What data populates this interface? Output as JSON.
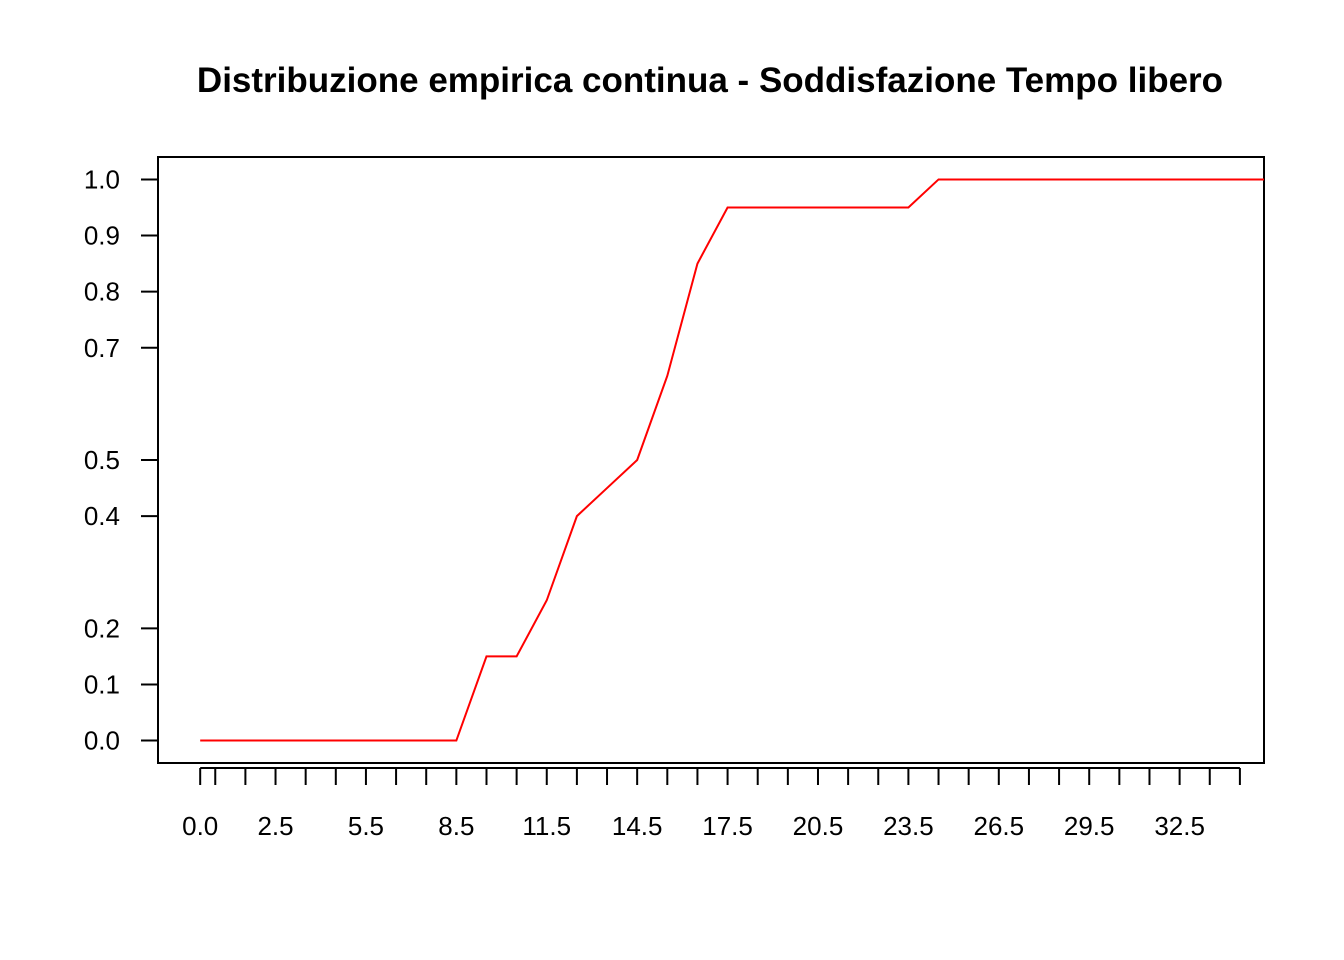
{
  "chart_data": {
    "type": "line",
    "title": "Distribuzione empirica continua - Soddisfazione Tempo libero",
    "xlabel": "",
    "ylabel": "",
    "xlim": [
      -1.4,
      35.3
    ],
    "ylim": [
      -0.04,
      1.04
    ],
    "grid": false,
    "legend": "none",
    "x_ticks": [
      0,
      0.5,
      1.5,
      2.5,
      3.5,
      4.5,
      5.5,
      6.5,
      7.5,
      8.5,
      9.5,
      10.5,
      11.5,
      12.5,
      13.5,
      14.5,
      15.5,
      16.5,
      17.5,
      18.5,
      19.5,
      20.5,
      21.5,
      22.5,
      23.5,
      24.5,
      25.5,
      26.5,
      27.5,
      28.5,
      29.5,
      30.5,
      31.5,
      32.5,
      33.5,
      34.5
    ],
    "x_tick_labels": [
      "0.0",
      "2.5",
      "5.5",
      "8.5",
      "11.5",
      "14.5",
      "17.5",
      "20.5",
      "23.5",
      "26.5",
      "29.5",
      "32.5"
    ],
    "x_tick_label_values": [
      0,
      2.5,
      5.5,
      8.5,
      11.5,
      14.5,
      17.5,
      20.5,
      23.5,
      26.5,
      29.5,
      32.5
    ],
    "y_ticks": [
      0.0,
      0.1,
      0.2,
      0.4,
      0.5,
      0.7,
      0.8,
      0.9,
      1.0
    ],
    "y_tick_labels": [
      "0.0",
      "0.1",
      "0.2",
      "0.4",
      "0.5",
      "0.7",
      "0.8",
      "0.9",
      "1.0"
    ],
    "series": [
      {
        "color": "#ff0000",
        "x": [
          0,
          0.5,
          1.5,
          2.5,
          3.5,
          4.5,
          5.5,
          6.5,
          7.5,
          8.5,
          9.5,
          10.5,
          11.5,
          12.5,
          13.5,
          14.5,
          15.5,
          16.5,
          17.5,
          18.5,
          19.5,
          20.5,
          21.5,
          22.5,
          23.5,
          24.5,
          25.5,
          26.5,
          27.5,
          28.5,
          29.5,
          30.5,
          31.5,
          32.5,
          33.5,
          34.5,
          35.3
        ],
        "y": [
          0,
          0,
          0,
          0,
          0,
          0,
          0,
          0,
          0,
          0,
          0.15,
          0.15,
          0.25,
          0.4,
          0.45,
          0.5,
          0.65,
          0.85,
          0.95,
          0.95,
          0.95,
          0.95,
          0.95,
          0.95,
          0.95,
          1.0,
          1.0,
          1.0,
          1.0,
          1.0,
          1.0,
          1.0,
          1.0,
          1.0,
          1.0,
          1.0,
          1.0
        ]
      }
    ]
  }
}
